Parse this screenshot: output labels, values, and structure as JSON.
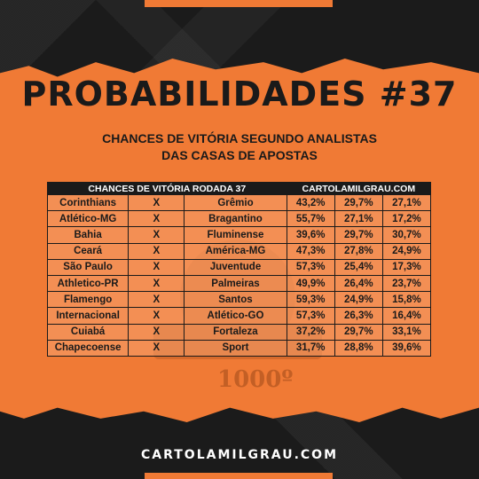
{
  "title": "PROBABILIDADES #37",
  "subtitle_line1": "CHANCES DE VITÓRIA SEGUNDO ANALISTAS",
  "subtitle_line2": "DAS CASAS DE APOSTAS",
  "table": {
    "header_left": "CHANCES DE VITÓRIA RODADA 37",
    "header_right": "CARTOLAMILGRAU.COM",
    "rows": [
      {
        "home": "Corinthians",
        "vs": "X",
        "away": "Grêmio",
        "p1": "43,2%",
        "p2": "29,7%",
        "p3": "27,1%"
      },
      {
        "home": "Atlético-MG",
        "vs": "X",
        "away": "Bragantino",
        "p1": "55,7%",
        "p2": "27,1%",
        "p3": "17,2%"
      },
      {
        "home": "Bahia",
        "vs": "X",
        "away": "Fluminense",
        "p1": "39,6%",
        "p2": "29,7%",
        "p3": "30,7%"
      },
      {
        "home": "Ceará",
        "vs": "X",
        "away": "América-MG",
        "p1": "47,3%",
        "p2": "27,8%",
        "p3": "24,9%"
      },
      {
        "home": "São Paulo",
        "vs": "X",
        "away": "Juventude",
        "p1": "57,3%",
        "p2": "25,4%",
        "p3": "17,3%"
      },
      {
        "home": "Athletico-PR",
        "vs": "X",
        "away": "Palmeiras",
        "p1": "49,9%",
        "p2": "26,4%",
        "p3": "23,7%"
      },
      {
        "home": "Flamengo",
        "vs": "X",
        "away": "Santos",
        "p1": "59,3%",
        "p2": "24,9%",
        "p3": "15,8%"
      },
      {
        "home": "Internacional",
        "vs": "X",
        "away": "Atlético-GO",
        "p1": "57,3%",
        "p2": "26,3%",
        "p3": "16,4%"
      },
      {
        "home": "Cuiabá",
        "vs": "X",
        "away": "Fortaleza",
        "p1": "37,2%",
        "p2": "29,7%",
        "p3": "33,1%"
      },
      {
        "home": "Chapecoense",
        "vs": "X",
        "away": "Sport",
        "p1": "31,7%",
        "p2": "28,8%",
        "p3": "39,6%"
      }
    ]
  },
  "watermark_text": "1000º",
  "footer": "CARTOLAMILGRAU.COM",
  "colors": {
    "accent": "#f07a35",
    "dark": "#1a1a1a"
  }
}
